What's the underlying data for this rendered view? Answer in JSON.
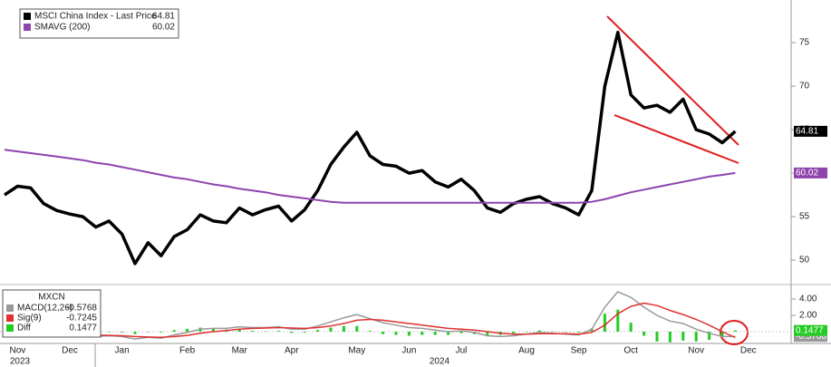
{
  "chart_data": [
    {
      "type": "line",
      "categories": [
        null,
        "Nov",
        null,
        null,
        null,
        "Dec",
        null,
        null,
        null,
        "Jan",
        null,
        null,
        null,
        null,
        "Feb",
        null,
        null,
        null,
        "Mar",
        null,
        null,
        null,
        "Apr",
        null,
        null,
        null,
        null,
        "May",
        null,
        null,
        null,
        "Jun",
        null,
        null,
        null,
        "Jul",
        null,
        null,
        null,
        null,
        "Aug",
        null,
        null,
        null,
        "Sep",
        null,
        null,
        null,
        "Oct",
        null,
        null,
        null,
        null,
        "Nov",
        null,
        null,
        null,
        "Dec"
      ],
      "year_labels": [
        "2023",
        "2024"
      ],
      "series": [
        {
          "name": "MSCI China Index - Last Price",
          "color": "#000000",
          "axis_label": true,
          "values": [
            57.5,
            58.5,
            58.3,
            56.5,
            55.7,
            55.3,
            55.0,
            53.8,
            54.5,
            53.0,
            49.6,
            52.0,
            50.5,
            52.7,
            53.5,
            55.2,
            54.5,
            54.3,
            56.0,
            55.2,
            55.8,
            56.2,
            54.5,
            55.8,
            58.0,
            61.0,
            63.0,
            64.7,
            62.0,
            61.0,
            60.8,
            60.0,
            60.3,
            59.0,
            58.4,
            59.3,
            58.0,
            56.0,
            55.5,
            56.5,
            57.0,
            57.3,
            56.5,
            56.0,
            55.2,
            58.0,
            70.0,
            76.2,
            69.0,
            67.5,
            67.8,
            67.0,
            68.5,
            65.0,
            64.5,
            63.5,
            64.81,
            null
          ]
        },
        {
          "name": "SMAVG (200)",
          "color": "#8e44ad",
          "axis_label": true,
          "values": [
            62.7,
            62.5,
            62.3,
            62.1,
            61.9,
            61.7,
            61.5,
            61.2,
            61.0,
            60.7,
            60.4,
            60.1,
            59.8,
            59.5,
            59.3,
            59.0,
            58.7,
            58.5,
            58.2,
            58.0,
            57.8,
            57.5,
            57.3,
            57.1,
            56.9,
            56.7,
            56.6,
            56.6,
            56.6,
            56.6,
            56.6,
            56.6,
            56.6,
            56.6,
            56.6,
            56.6,
            56.6,
            56.6,
            56.6,
            56.6,
            56.6,
            56.6,
            56.6,
            56.6,
            56.6,
            56.7,
            57.0,
            57.4,
            57.8,
            58.1,
            58.4,
            58.7,
            59.0,
            59.3,
            59.6,
            59.8,
            60.02,
            null
          ]
        }
      ],
      "ylim": [
        47.4,
        79.7
      ],
      "yticks": [
        50,
        55,
        60,
        65,
        70,
        75
      ],
      "legend": "top-left"
    },
    {
      "type": "line",
      "title": "MXCN",
      "series": [
        {
          "name": "MACD(12,26)",
          "color": "#999999",
          "axis_label": true,
          "values": [
            -0.3,
            0.1,
            0.2,
            -0.1,
            -0.3,
            -0.4,
            -0.5,
            -0.6,
            -0.5,
            -0.6,
            -0.9,
            -0.7,
            -0.8,
            -0.4,
            -0.1,
            0.3,
            0.4,
            0.4,
            0.6,
            0.5,
            0.5,
            0.6,
            0.3,
            0.3,
            0.7,
            1.2,
            1.7,
            2.1,
            1.6,
            1.1,
            0.8,
            0.5,
            0.4,
            0.2,
            0.0,
            0.1,
            -0.1,
            -0.5,
            -0.6,
            -0.5,
            -0.3,
            -0.1,
            -0.2,
            -0.3,
            -0.4,
            0.3,
            3.0,
            4.9,
            4.2,
            3.0,
            2.0,
            1.3,
            1.0,
            0.3,
            -0.2,
            -0.6,
            -0.5768,
            null
          ]
        },
        {
          "name": "Sig(9)",
          "color": "#e03030",
          "axis_label": false,
          "values": [
            -0.1,
            -0.05,
            0.05,
            0.05,
            -0.05,
            -0.2,
            -0.3,
            -0.4,
            -0.45,
            -0.5,
            -0.6,
            -0.65,
            -0.7,
            -0.6,
            -0.45,
            -0.2,
            0.0,
            0.15,
            0.3,
            0.4,
            0.45,
            0.5,
            0.45,
            0.4,
            0.5,
            0.7,
            1.0,
            1.4,
            1.5,
            1.4,
            1.2,
            1.0,
            0.8,
            0.6,
            0.4,
            0.3,
            0.2,
            0.0,
            -0.2,
            -0.3,
            -0.3,
            -0.25,
            -0.25,
            -0.25,
            -0.3,
            -0.1,
            0.8,
            2.2,
            3.1,
            3.5,
            3.2,
            2.6,
            2.1,
            1.5,
            0.8,
            0.0,
            -0.7245,
            null
          ]
        },
        {
          "name": "Diff",
          "color": "#22cc22",
          "axis_label": true,
          "type": "bar",
          "values": [
            -0.2,
            0.15,
            0.15,
            -0.15,
            -0.25,
            -0.2,
            -0.2,
            -0.2,
            -0.05,
            -0.1,
            -0.3,
            -0.05,
            -0.1,
            0.2,
            0.35,
            0.5,
            0.4,
            0.25,
            0.3,
            0.1,
            0.05,
            0.1,
            -0.15,
            -0.1,
            0.2,
            0.5,
            0.7,
            0.7,
            0.1,
            -0.3,
            -0.4,
            -0.5,
            -0.4,
            -0.4,
            -0.4,
            -0.2,
            -0.3,
            -0.5,
            -0.4,
            -0.2,
            0.0,
            0.15,
            0.05,
            -0.05,
            -0.1,
            0.4,
            2.2,
            2.7,
            1.1,
            -0.5,
            -1.2,
            -1.3,
            -1.1,
            -1.2,
            -1.0,
            -0.6,
            0.1477,
            null
          ]
        }
      ],
      "ylim": [
        -1.33,
        5.33
      ],
      "yticks": [
        {
          "value": 4,
          "label": "4.00"
        },
        {
          "value": 2,
          "label": "2.00"
        }
      ],
      "legend": "top-left"
    }
  ]
}
